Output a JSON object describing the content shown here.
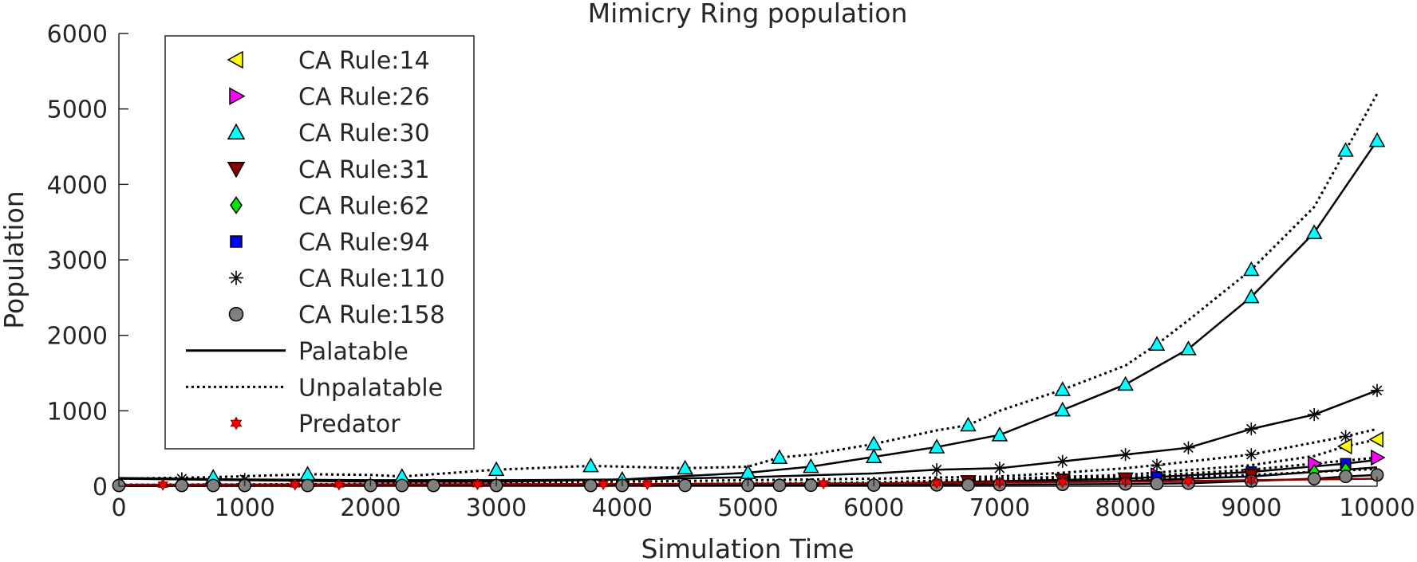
{
  "chart_data": {
    "type": "line",
    "title": "Mimicry Ring population",
    "xlabel": "Simulation Time",
    "ylabel": "Population",
    "xlim": [
      0,
      10000
    ],
    "ylim": [
      0,
      6000
    ],
    "x_ticks": [
      "0",
      "1000",
      "2000",
      "3000",
      "4000",
      "5000",
      "6000",
      "7000",
      "8000",
      "9000",
      "10000"
    ],
    "y_ticks": [
      "0",
      "1000",
      "2000",
      "3000",
      "4000",
      "5000",
      "6000"
    ],
    "grid": false,
    "legend_position": "top-left",
    "legend": [
      {
        "label": "CA Rule:14",
        "marker": "triangle-left",
        "color": "#ffff00"
      },
      {
        "label": "CA Rule:26",
        "marker": "triangle-right",
        "color": "#ff00ff"
      },
      {
        "label": "CA Rule:30",
        "marker": "triangle-up",
        "color": "#00ffff"
      },
      {
        "label": "CA Rule:31",
        "marker": "triangle-down",
        "color": "#8b0000"
      },
      {
        "label": "CA Rule:62",
        "marker": "diamond",
        "color": "#00e600"
      },
      {
        "label": "CA Rule:94",
        "marker": "square",
        "color": "#0000ff"
      },
      {
        "label": "CA Rule:110",
        "marker": "asterisk",
        "color": "#000000"
      },
      {
        "label": "CA Rule:158",
        "marker": "circle",
        "color": "#808080"
      },
      {
        "label": "Palatable",
        "line": "solid",
        "color": "#000000"
      },
      {
        "label": "Unpalatable",
        "line": "dotted",
        "color": "#000000"
      },
      {
        "label": "Predator",
        "marker": "hexagram",
        "color": "#ff0000"
      }
    ],
    "series": [
      {
        "rule": "CA Rule:30",
        "palatability": "Unpalatable",
        "marker": "triangle-up",
        "color": "#00ffff",
        "line": "dotted",
        "x": [
          0,
          750,
          1500,
          2000,
          2250,
          3000,
          3750,
          4500,
          5000,
          5250,
          5500,
          6000,
          6500,
          6750,
          7000,
          7500,
          8000,
          8250,
          8500,
          9000,
          9500,
          9750,
          10000
        ],
        "y": [
          100,
          120,
          160,
          150,
          130,
          220,
          270,
          240,
          260,
          380,
          420,
          560,
          740,
          810,
          1000,
          1280,
          1600,
          1880,
          2200,
          2870,
          3700,
          4450,
          5200
        ],
        "markers_x": [
          750,
          1500,
          2250,
          3000,
          3750,
          4500,
          5250,
          6000,
          6750,
          7500,
          8250,
          9000,
          9750
        ]
      },
      {
        "rule": "CA Rule:30",
        "palatability": "Palatable",
        "marker": "triangle-up",
        "color": "#00ffff",
        "line": "solid",
        "x": [
          0,
          1000,
          2000,
          3000,
          4000,
          5000,
          5500,
          6000,
          6500,
          7000,
          7500,
          8000,
          8500,
          9000,
          9500,
          10000
        ],
        "y": [
          100,
          80,
          60,
          60,
          90,
          180,
          260,
          390,
          520,
          680,
          1010,
          1350,
          1820,
          2510,
          3360,
          4580
        ],
        "markers_x": [
          4000,
          5000,
          5500,
          6000,
          6500,
          7000,
          7500,
          8000,
          8500,
          9000,
          9500,
          10000
        ]
      },
      {
        "rule": "CA Rule:110",
        "palatability": "Palatable",
        "marker": "asterisk",
        "color": "#000000",
        "line": "solid",
        "x": [
          0,
          500,
          1000,
          2000,
          3000,
          4000,
          5000,
          6000,
          6500,
          7000,
          7500,
          8000,
          8500,
          9000,
          9500,
          10000
        ],
        "y": [
          110,
          100,
          90,
          80,
          80,
          90,
          120,
          170,
          220,
          240,
          330,
          420,
          510,
          760,
          950,
          1270
        ],
        "markers_x": [
          500,
          1000,
          6500,
          7000,
          7500,
          8000,
          8500,
          9000,
          9500,
          10000
        ]
      },
      {
        "rule": "CA Rule:110",
        "palatability": "Unpalatable",
        "marker": "asterisk",
        "color": "#000000",
        "line": "dotted",
        "x": [
          0,
          2000,
          4000,
          6000,
          7000,
          7500,
          8000,
          8250,
          9000,
          9750,
          10000
        ],
        "y": [
          20,
          30,
          60,
          100,
          130,
          180,
          240,
          280,
          420,
          660,
          760
        ],
        "markers_x": [
          8250,
          9000,
          9750
        ]
      },
      {
        "rule": "CA Rule:14",
        "palatability": "Unpalatable",
        "marker": "triangle-left",
        "color": "#ffff00",
        "line": "dotted",
        "x": [
          0,
          2000,
          4000,
          6000,
          8000,
          9000,
          9500,
          9750,
          10000
        ],
        "y": [
          10,
          15,
          25,
          50,
          150,
          280,
          400,
          530,
          620
        ],
        "markers_x": [
          9750,
          10000
        ]
      },
      {
        "rule": "CA Rule:26",
        "palatability": "Unpalatable",
        "marker": "triangle-right",
        "color": "#ff00ff",
        "line": "dotted",
        "x": [
          0,
          2000,
          4000,
          6000,
          8000,
          9000,
          9500,
          10000
        ],
        "y": [
          10,
          12,
          20,
          40,
          120,
          220,
          300,
          380
        ],
        "markers_x": [
          8250,
          9500,
          10000
        ]
      },
      {
        "rule": "CA Rule:94",
        "palatability": "Palatable",
        "marker": "square",
        "color": "#0000ff",
        "line": "solid",
        "x": [
          0,
          2000,
          4000,
          6000,
          8000,
          9000,
          9750,
          10000
        ],
        "y": [
          5,
          8,
          15,
          35,
          100,
          190,
          300,
          350
        ],
        "markers_x": [
          8250,
          9000,
          9750
        ]
      },
      {
        "rule": "CA Rule:62",
        "palatability": "Palatable",
        "marker": "diamond",
        "color": "#00e600",
        "line": "solid",
        "x": [
          0,
          2000,
          4000,
          6000,
          8000,
          9000,
          10000
        ],
        "y": [
          5,
          8,
          12,
          25,
          70,
          130,
          250
        ],
        "markers_x": [
          9500,
          9750
        ]
      },
      {
        "rule": "CA Rule:31",
        "palatability": "Unpalatable",
        "marker": "triangle-down",
        "color": "#8b0000",
        "line": "dotted",
        "x": [
          0,
          2000,
          4000,
          6000,
          8000,
          9000,
          10000
        ],
        "y": [
          5,
          10,
          20,
          40,
          100,
          150,
          230
        ],
        "markers_x": [
          6750,
          7500,
          8000,
          9000
        ]
      },
      {
        "rule": "CA Rule:158",
        "palatability": "Palatable",
        "marker": "circle",
        "color": "#808080",
        "line": "solid",
        "x": [
          0,
          2000,
          4000,
          6000,
          7000,
          8000,
          8500,
          9000,
          9500,
          9750,
          10000
        ],
        "y": [
          10,
          10,
          10,
          15,
          20,
          30,
          40,
          70,
          100,
          130,
          150
        ],
        "markers_x": [
          0,
          500,
          750,
          1000,
          1500,
          2000,
          2250,
          2500,
          3000,
          3750,
          4000,
          4500,
          5000,
          5250,
          5500,
          6000,
          6500,
          6750,
          7000,
          7500,
          8000,
          8250,
          8500,
          9000,
          9500,
          9750,
          10000
        ]
      },
      {
        "rule": "Predator",
        "palatability": "",
        "marker": "hexagram",
        "color": "#ff0000",
        "line": "solid",
        "x": [
          0,
          2000,
          4000,
          6000,
          8000,
          10000
        ],
        "y": [
          20,
          25,
          30,
          40,
          60,
          100
        ],
        "markers_x": [
          350,
          1400,
          1750,
          2850,
          3850,
          4200,
          5600,
          6500,
          7000,
          7500,
          8000,
          8500,
          9000
        ]
      }
    ]
  }
}
